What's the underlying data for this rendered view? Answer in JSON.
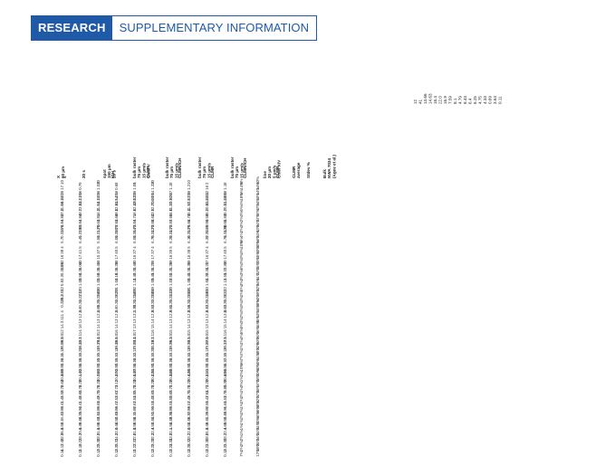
{
  "banner": {
    "tag": "RESEARCH",
    "label": "SUPPLEMENTARY INFORMATION"
  },
  "table": {
    "headers": [
      {
        "lines": [
          "X",
          "60 µm"
        ]
      },
      {
        "lines": [
          "s"
        ]
      },
      {
        "lines": [
          "20 s"
        ]
      },
      {
        "lines": [
          "spot",
          "150 µm",
          "20 s"
        ]
      },
      {
        "lines": [
          "ICH"
        ]
      },
      {
        "lines": [
          "bulk raster",
          "75 µm",
          "15 µm/s",
          "Chief V"
        ]
      },
      {
        "lines": [
          "CLMR"
        ]
      },
      {
        "lines": [
          "bulk raster",
          "75 µm",
          "15 µm/s"
        ]
      },
      {
        "lines": [
          "CLMR/ICH"
        ]
      },
      {
        "lines": [
          "bulk raster",
          "75 µm",
          "15 µm/s"
        ]
      },
      {
        "lines": [
          "CLMR"
        ]
      },
      {
        "lines": [
          "bulk raster",
          "75 µm",
          "15 µm/s"
        ]
      },
      {
        "lines": [
          "CLMR/ICH"
        ]
      },
      {
        "lines": [
          "line",
          "20 µm",
          "5 µm/s",
          "Chief XIV"
        ]
      },
      {
        "lines": [
          "CLMR"
        ]
      },
      {
        "lines": [
          "CLMR",
          "average"
        ]
      },
      {
        "lines": [
          "Stdev %"
        ]
      },
      {
        "lines": [
          "Bulk",
          "NWA 7034",
          "(Agee et al.)"
        ]
      }
    ],
    "columns": [
      [
        "10",
        "17",
        "16",
        "1.22",
        "10.36",
        "11.04",
        "47.3",
        "4.83",
        "0.84",
        "1.74",
        "0.335",
        "5.7",
        "4",
        "38",
        "16",
        "62",
        "1.28",
        "0.358",
        "3.3",
        "0.8",
        "22",
        "2.01",
        "20.3",
        "0.335",
        "4",
        "11",
        "3.1",
        "14",
        "12",
        "1.0",
        "29.8",
        "20.06",
        "0.19",
        "0.11",
        "0.16",
        "0.03",
        "4.48",
        "20.30",
        "3.64",
        "2.76",
        "3.58",
        "1.45",
        "6.41",
        "0.88",
        "8.42",
        "8.4",
        "4.52",
        "25.8",
        "22.9",
        "2.46",
        "4.17",
        "0.11"
      ],
      [
        "9",
        "0.7",
        "16",
        "1.20",
        "12.21",
        "13.84",
        "48.7",
        "4.84",
        "0.84",
        "1.83",
        "0.329",
        "6.41",
        "5",
        "41",
        "17",
        "60",
        "1.04",
        "0.36",
        "3.54",
        "1.08",
        "24",
        "2.07",
        "0.271",
        "0.24",
        "3.6",
        "12.5",
        "13",
        "16",
        "14",
        "1.1",
        "22.2",
        "18.49",
        "0.20",
        "0.15",
        "0.16",
        "0.04",
        "4.42",
        "20.14",
        "3.26",
        "2.76",
        "3.66",
        "1.46",
        "6.41",
        "0.94",
        "8.25",
        "8.46",
        "4.49",
        "20.9",
        "23.7",
        "2.23",
        "3.16",
        "0.11"
      ],
      [
        "10",
        "1.03",
        "16",
        "1.29",
        "12.26",
        "11.54",
        "46.3",
        "4.81",
        "0.62",
        "1.70",
        "0.313",
        "5.54",
        "5",
        "37",
        "15",
        "58",
        "1.45",
        "0.36",
        "3.59",
        "1.05",
        "20",
        "2.05",
        "0.256",
        "0.25",
        "3.66",
        "12.4",
        "13",
        "14",
        "13",
        "1.0",
        "29.4",
        "19.79",
        "0.16",
        "0.15",
        "0.15",
        "0.03",
        "4.63",
        "20.76",
        "3.24",
        "2.76",
        "3.70",
        "1.49",
        "6.68",
        "0.89",
        "8.44",
        "8.43",
        "4.66",
        "21.6",
        "23.9",
        "2.38",
        "3.25",
        "0.13"
      ],
      [
        "8",
        "0.6",
        "16",
        "1.25",
        "11.54",
        "12.64",
        "48.8",
        "4.66",
        "0.83",
        "1.77",
        "0.380",
        "6.04",
        "5",
        "40",
        "17",
        "58",
        "1.28",
        "0.36",
        "3.18",
        "1.04",
        "21",
        "2.20",
        "0.262",
        "0.24",
        "3.6",
        "12.5",
        "13",
        "14",
        "16",
        "1.0",
        "29.6",
        "19.45",
        "0.18",
        "0.13",
        "0.15",
        "0.03",
        "4.52",
        "20.37",
        "3.11",
        "2.73",
        "3.67",
        "1.53",
        "6.47",
        "0.89",
        "8.40",
        "8.52",
        "4.44",
        "22.0",
        "24.3",
        "2.31",
        "3.35",
        "0.13"
      ],
      [
        "9",
        "1.01",
        "16",
        "1.28",
        "12.03",
        "12.48",
        "46.6",
        "4.71",
        "0.84",
        "1.73",
        "0.364",
        "6.04",
        "4",
        "37",
        "16",
        "60",
        "1.43",
        "0.38",
        "3.43",
        "1.14",
        "22",
        "2.09",
        "0.246",
        "0.24",
        "3.38",
        "13.1",
        "13",
        "13",
        "17",
        "1.0",
        "29.4",
        "19.63",
        "0.17",
        "0.12",
        "0.16",
        "0.04",
        "4.37",
        "20.54",
        "3.24",
        "2.78",
        "3.85",
        "1.54",
        "6.62",
        "0.87",
        "8.11",
        "8.56",
        "4.56",
        "21.8",
        "22.6",
        "2.37",
        "3.22",
        "0.11"
      ],
      [
        "10",
        "1.33",
        "14",
        "1.26",
        "11.09",
        "12.70",
        "43.9",
        "4.62",
        "0.88",
        "1.73",
        "0.342",
        "6.75",
        "4",
        "37",
        "17",
        "56",
        "1.27",
        "0.36",
        "3.41",
        "1.09",
        "19",
        "2.06",
        "0.258",
        "0.23",
        "3.53",
        "12.9",
        "14",
        "15",
        "16",
        "1.1",
        "29.2",
        "20.18",
        "0.20",
        "0.15",
        "0.16",
        "0.03",
        "4.44",
        "20.23",
        "3.28",
        "2.78",
        "3.69",
        "1.48",
        "6.58",
        "0.90",
        "8.51",
        "8.44",
        "4.53",
        "22.4",
        "22.3",
        "2.28",
        "3.25",
        "0.13"
      ],
      [
        "8",
        "1.1",
        "17",
        "1.26",
        "10.90",
        "11.30",
        "44.0",
        "4.68",
        "0.87",
        "1.72",
        "0.341",
        "6.25",
        "5",
        "39",
        "16",
        "59",
        "1.28",
        "0.35",
        "3.52",
        "1.07",
        "20",
        "2.02",
        "0.241",
        "0.25",
        "3.64",
        "12.9",
        "13",
        "14",
        "15",
        "1.0",
        "29.3",
        "19.95",
        "0.19",
        "0.13",
        "0.16",
        "0.03",
        "4.46",
        "20.36",
        "3.26",
        "2.75",
        "3.68",
        "1.50",
        "6.55",
        "0.89",
        "8.36",
        "8.48",
        "4.54",
        "22.1",
        "23.5",
        "2.34",
        "3.24",
        "0.12"
      ],
      [
        "10",
        "1.2",
        "16",
        "1.28",
        "11.87",
        "11.97",
        "45.4",
        "4.73",
        "0.86",
        "1.75",
        "0.353",
        "6.16",
        "5",
        "38",
        "16",
        "59",
        "1.30",
        "0.36",
        "3.43",
        "1.08",
        "21",
        "2.08",
        "0.255",
        "0.24",
        "3.56",
        "12.8",
        "13",
        "14",
        "15",
        "1.0",
        "29.5",
        "19.93",
        "0.18",
        "0.14",
        "0.16",
        "0.03",
        "4.48",
        "20.43",
        "3.29",
        "2.76",
        "3.70",
        "1.49",
        "6.57",
        "0.89",
        "8.37",
        "8.46",
        "4.52",
        "22.0",
        "23.2",
        "2.33",
        "3.26",
        "0.12"
      ],
      [
        "2",
        "16",
        "22",
        "2.34",
        "11.40",
        "10.65",
        "45.2",
        "4.59",
        "0.80",
        "1.69",
        "0.301",
        "6.37",
        "4",
        "37",
        "16",
        "57",
        "1.22",
        "0.34",
        "3.33",
        "1.04",
        "20",
        "2.01",
        "0.249",
        "0.23",
        "3.42",
        "12.6",
        "13",
        "13",
        "15",
        "1.0",
        "29.0",
        "19.67",
        "0.17",
        "0.14",
        "0.15",
        "0.03",
        "4.41",
        "20.21",
        "3.20",
        "2.73",
        "3.64",
        "1.47",
        "6.50",
        "0.87",
        "8.29",
        "8.41",
        "4.49",
        "21.8",
        "23.0",
        "2.30",
        "3.21",
        "0.12"
      ],
      [
        "8",
        "1.1",
        "16",
        "2.08",
        "11.40",
        "10.51",
        "45.7",
        "4.83",
        "0.85",
        "1.80",
        "0.3471",
        "6.74",
        "5",
        "40",
        "17",
        "60",
        "1.33",
        "0.37",
        "3.51",
        "1.11",
        "22",
        "2.11",
        "0.262",
        "0.25",
        "3.63",
        "13.0",
        "14",
        "15",
        "16",
        "1.1",
        "29.9",
        "20.17",
        "0.19",
        "0.15",
        "0.17",
        "0.04",
        "4.56",
        "20.60",
        "3.35",
        "2.80",
        "3.76",
        "1.52",
        "6.66",
        "0.91",
        "8.48",
        "8.55",
        "4.60",
        "22.4",
        "23.7",
        "2.38",
        "3.31",
        "0.13"
      ],
      [
        "8%",
        "14%",
        "5%",
        "18%",
        "4%",
        "5%",
        "3%",
        "2%",
        "3%",
        "2%",
        "4%",
        "6%",
        "10%",
        "3%",
        "3%",
        "3%",
        "6%",
        "3%",
        "3%",
        "3%",
        "5%",
        "2%",
        "3%",
        "3%",
        "3%",
        "2%",
        "3%",
        "5%",
        "5%",
        "4%",
        "1%",
        "1%",
        "7%",
        "7%",
        "4%",
        "10%",
        "2%",
        "1%",
        "3%",
        "1%",
        "2%",
        "2%",
        "1%",
        "2%",
        "2%",
        "1%",
        "1%",
        "1%",
        "2%",
        "2%",
        "2%",
        "7%"
      ],
      [
        "40%",
        "14%",
        "14%",
        "10%",
        "34%",
        "47%",
        "37%",
        "27%",
        "34%",
        "43%",
        "24%",
        "56%",
        "30%",
        "40%",
        "15%",
        "20%",
        "25%",
        "23%",
        "41%",
        "34%",
        "22%",
        "29%",
        "50%",
        "38%",
        "24%",
        "13%",
        "35%",
        "15%",
        "16%",
        "26%",
        "60%",
        "32%",
        "38%",
        "41%",
        "50%",
        "60%",
        "20%",
        "28%",
        "17%",
        "38%",
        "27%",
        "32%",
        "38%",
        "36%",
        "46%",
        "30%",
        "31%",
        "24%",
        "24%",
        "25%",
        "18%",
        "17%"
      ]
    ],
    "bulk_values": [
      "12",
      "41",
      "13.66",
      "14.63",
      "18.4",
      "22.0",
      "16.9",
      "7.59",
      "8.1",
      "4.79",
      "8.43",
      "6.4",
      "8.25",
      "4.75",
      "4.33",
      "0.69",
      "3.64",
      "0.11"
    ]
  }
}
